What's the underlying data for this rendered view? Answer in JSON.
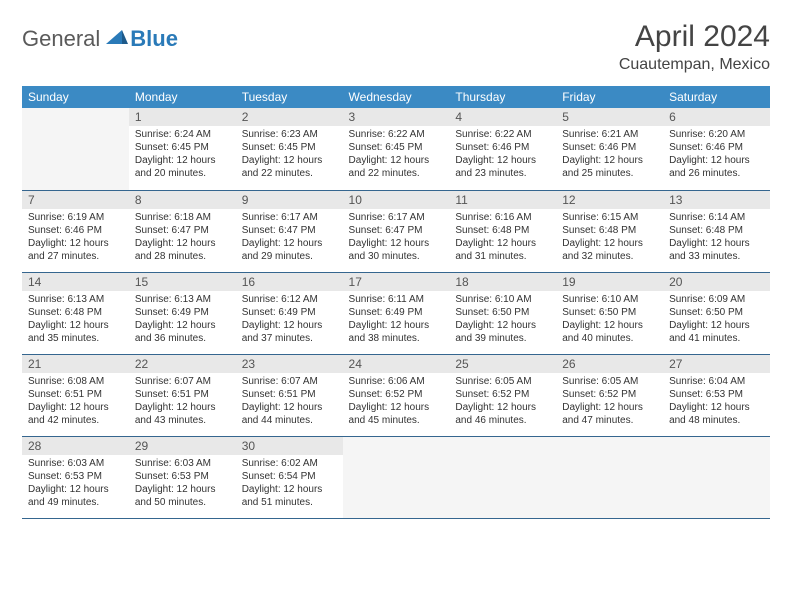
{
  "logo": {
    "general": "General",
    "blue": "Blue"
  },
  "title": "April 2024",
  "location": "Cuautempan, Mexico",
  "colors": {
    "header_bg": "#3b8ac4",
    "header_text": "#ffffff",
    "daynum_bg": "#e8e8e8",
    "border": "#35668f",
    "empty_bg": "#f5f5f5",
    "logo_blue": "#2a7ab8",
    "logo_gray": "#5a5a5a"
  },
  "weekdays": [
    "Sunday",
    "Monday",
    "Tuesday",
    "Wednesday",
    "Thursday",
    "Friday",
    "Saturday"
  ],
  "grid": [
    [
      {
        "empty": true
      },
      {
        "n": "1",
        "sr": "6:24 AM",
        "ss": "6:45 PM",
        "dl": "12 hours and 20 minutes."
      },
      {
        "n": "2",
        "sr": "6:23 AM",
        "ss": "6:45 PM",
        "dl": "12 hours and 22 minutes."
      },
      {
        "n": "3",
        "sr": "6:22 AM",
        "ss": "6:45 PM",
        "dl": "12 hours and 22 minutes."
      },
      {
        "n": "4",
        "sr": "6:22 AM",
        "ss": "6:46 PM",
        "dl": "12 hours and 23 minutes."
      },
      {
        "n": "5",
        "sr": "6:21 AM",
        "ss": "6:46 PM",
        "dl": "12 hours and 25 minutes."
      },
      {
        "n": "6",
        "sr": "6:20 AM",
        "ss": "6:46 PM",
        "dl": "12 hours and 26 minutes."
      }
    ],
    [
      {
        "n": "7",
        "sr": "6:19 AM",
        "ss": "6:46 PM",
        "dl": "12 hours and 27 minutes."
      },
      {
        "n": "8",
        "sr": "6:18 AM",
        "ss": "6:47 PM",
        "dl": "12 hours and 28 minutes."
      },
      {
        "n": "9",
        "sr": "6:17 AM",
        "ss": "6:47 PM",
        "dl": "12 hours and 29 minutes."
      },
      {
        "n": "10",
        "sr": "6:17 AM",
        "ss": "6:47 PM",
        "dl": "12 hours and 30 minutes."
      },
      {
        "n": "11",
        "sr": "6:16 AM",
        "ss": "6:48 PM",
        "dl": "12 hours and 31 minutes."
      },
      {
        "n": "12",
        "sr": "6:15 AM",
        "ss": "6:48 PM",
        "dl": "12 hours and 32 minutes."
      },
      {
        "n": "13",
        "sr": "6:14 AM",
        "ss": "6:48 PM",
        "dl": "12 hours and 33 minutes."
      }
    ],
    [
      {
        "n": "14",
        "sr": "6:13 AM",
        "ss": "6:48 PM",
        "dl": "12 hours and 35 minutes."
      },
      {
        "n": "15",
        "sr": "6:13 AM",
        "ss": "6:49 PM",
        "dl": "12 hours and 36 minutes."
      },
      {
        "n": "16",
        "sr": "6:12 AM",
        "ss": "6:49 PM",
        "dl": "12 hours and 37 minutes."
      },
      {
        "n": "17",
        "sr": "6:11 AM",
        "ss": "6:49 PM",
        "dl": "12 hours and 38 minutes."
      },
      {
        "n": "18",
        "sr": "6:10 AM",
        "ss": "6:50 PM",
        "dl": "12 hours and 39 minutes."
      },
      {
        "n": "19",
        "sr": "6:10 AM",
        "ss": "6:50 PM",
        "dl": "12 hours and 40 minutes."
      },
      {
        "n": "20",
        "sr": "6:09 AM",
        "ss": "6:50 PM",
        "dl": "12 hours and 41 minutes."
      }
    ],
    [
      {
        "n": "21",
        "sr": "6:08 AM",
        "ss": "6:51 PM",
        "dl": "12 hours and 42 minutes."
      },
      {
        "n": "22",
        "sr": "6:07 AM",
        "ss": "6:51 PM",
        "dl": "12 hours and 43 minutes."
      },
      {
        "n": "23",
        "sr": "6:07 AM",
        "ss": "6:51 PM",
        "dl": "12 hours and 44 minutes."
      },
      {
        "n": "24",
        "sr": "6:06 AM",
        "ss": "6:52 PM",
        "dl": "12 hours and 45 minutes."
      },
      {
        "n": "25",
        "sr": "6:05 AM",
        "ss": "6:52 PM",
        "dl": "12 hours and 46 minutes."
      },
      {
        "n": "26",
        "sr": "6:05 AM",
        "ss": "6:52 PM",
        "dl": "12 hours and 47 minutes."
      },
      {
        "n": "27",
        "sr": "6:04 AM",
        "ss": "6:53 PM",
        "dl": "12 hours and 48 minutes."
      }
    ],
    [
      {
        "n": "28",
        "sr": "6:03 AM",
        "ss": "6:53 PM",
        "dl": "12 hours and 49 minutes."
      },
      {
        "n": "29",
        "sr": "6:03 AM",
        "ss": "6:53 PM",
        "dl": "12 hours and 50 minutes."
      },
      {
        "n": "30",
        "sr": "6:02 AM",
        "ss": "6:54 PM",
        "dl": "12 hours and 51 minutes."
      },
      {
        "empty": true
      },
      {
        "empty": true
      },
      {
        "empty": true
      },
      {
        "empty": true
      }
    ]
  ],
  "labels": {
    "sunrise": "Sunrise:",
    "sunset": "Sunset:",
    "daylight": "Daylight:"
  }
}
